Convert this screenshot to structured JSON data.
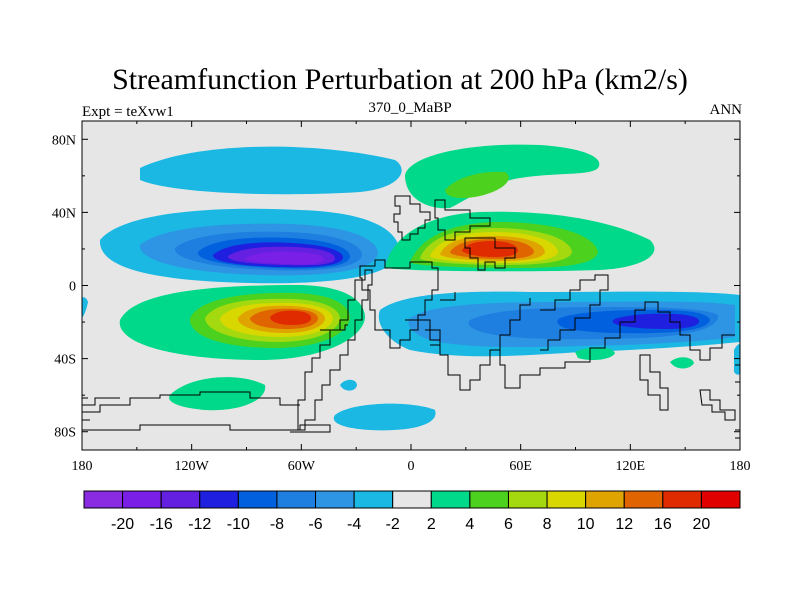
{
  "chart_data": {
    "type": "heatmap",
    "subtype": "filled-contour-map",
    "title": "Streamfunction Perturbation at 200 hPa (km2/s)",
    "left_label": "Expt = teXvw1",
    "center_label": "370_0_MaBP",
    "right_label": "ANN",
    "xaxis": {
      "ticks": [
        -180,
        -120,
        -60,
        0,
        60,
        120,
        180
      ],
      "labels": [
        "180",
        "120W",
        "60W",
        "0",
        "60E",
        "120E",
        "180"
      ],
      "range": [
        -180,
        180
      ]
    },
    "yaxis": {
      "ticks": [
        80,
        40,
        0,
        -40,
        -80
      ],
      "labels": [
        "80N",
        "40N",
        "0",
        "40S",
        "80S"
      ],
      "range": [
        -90,
        90
      ]
    },
    "colorbar": {
      "labels": [
        "-20",
        "-16",
        "-12",
        "-10",
        "-8",
        "-6",
        "-4",
        "-2",
        "2",
        "4",
        "6",
        "8",
        "10",
        "12",
        "16",
        "20"
      ],
      "levels": [
        -20,
        -16,
        -12,
        -10,
        -8,
        -6,
        -4,
        -2,
        2,
        4,
        6,
        8,
        10,
        12,
        16,
        20
      ],
      "colors": [
        "#8a2be2",
        "#7a1fe6",
        "#6320e0",
        "#1f1fe0",
        "#0060dd",
        "#1f7fe0",
        "#2e95e4",
        "#1ab8e2",
        "#e6e6e6",
        "#00d98a",
        "#4cd21e",
        "#a5d90f",
        "#d8d800",
        "#e0a400",
        "#e06400",
        "#e02a00",
        "#e00000"
      ]
    },
    "features": [
      {
        "name": "trough-west-hemisphere-north",
        "sign": "negative",
        "center_lon": -70,
        "center_lat": 18,
        "peak": -20
      },
      {
        "name": "ridge-west-hemisphere-south",
        "sign": "positive",
        "center_lon": -60,
        "center_lat": -16,
        "peak": 16
      },
      {
        "name": "ridge-east-hemisphere-north",
        "sign": "positive",
        "center_lon": 45,
        "center_lat": 22,
        "peak": 16
      },
      {
        "name": "trough-east-hemisphere-south",
        "sign": "negative",
        "center_lon": 130,
        "center_lat": -16,
        "peak": -10
      }
    ]
  }
}
